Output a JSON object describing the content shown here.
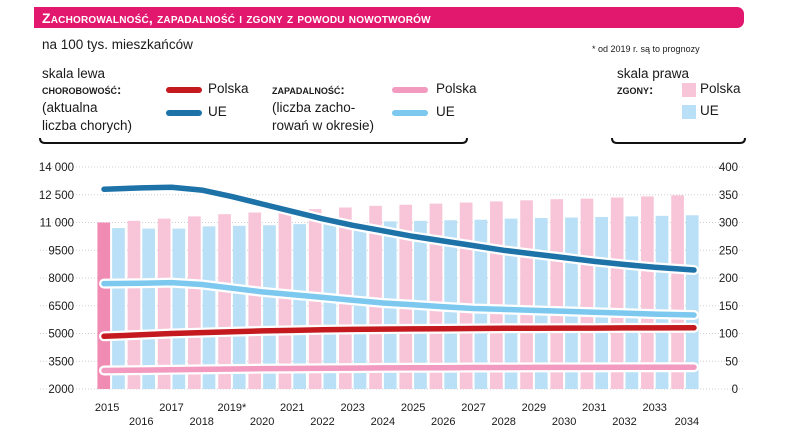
{
  "title": "Zachorowalność, zapadalność i zgony z powodu nowotworów",
  "subtitle": "na 100 tys. mieszkańców",
  "note": "* od 2019 r. są to prognozy",
  "legend": {
    "left_scale": "skala lewa",
    "right_scale": "skala prawa",
    "chorobowosc_head": "chorobowość:",
    "chorobowosc_line2": "(aktualna",
    "chorobowosc_line3": "liczba chorych)",
    "zapadalnosc_head": "zapadalność:",
    "zapadalnosc_line2": "(liczba zacho-",
    "zapadalnosc_line3": "rowań w okresie)",
    "zgony_head": "zgony:",
    "polska": "Polska",
    "ue": "UE"
  },
  "colors": {
    "title_bg": "#e2186f",
    "chorobowosc_polska": "#c41a1f",
    "chorobowosc_ue": "#1d72a8",
    "zapadalnosc_polska": "#f29ac0",
    "zapadalnosc_ue": "#7cc8ef",
    "zgony_polska": "#f8c5d8",
    "zgony_ue": "#b9e0f6",
    "zgony_polska_2015": "#f08cb4"
  },
  "chart_data": {
    "type": "bar",
    "x_labels_top": [
      "2015",
      "2017",
      "2019*",
      "2021",
      "2023",
      "2025",
      "2027",
      "2029",
      "2031",
      "2033"
    ],
    "x_labels_bottom": [
      "2016",
      "2018",
      "2020",
      "2022",
      "2024",
      "2026",
      "2028",
      "2030",
      "2032",
      "2034"
    ],
    "categories": [
      "2015",
      "2016",
      "2017",
      "2018",
      "2019",
      "2020",
      "2021",
      "2022",
      "2023",
      "2024",
      "2025",
      "2026",
      "2027",
      "2028",
      "2029",
      "2030",
      "2031",
      "2032",
      "2033",
      "2034"
    ],
    "y_left_ticks": [
      "2000",
      "3500",
      "5000",
      "6500",
      "8000",
      "9500",
      "11 000",
      "12 500",
      "14 000"
    ],
    "y_right_ticks": [
      "0",
      "50",
      "100",
      "150",
      "200",
      "250",
      "300",
      "350",
      "400"
    ],
    "ylim_left": [
      2000,
      14000
    ],
    "ylim_right": [
      0,
      400
    ],
    "bar_series": [
      {
        "name": "Polska",
        "axis": "right",
        "values": [
          300,
          303,
          307,
          311,
          315,
          318,
          321,
          324,
          327,
          330,
          332,
          334,
          336,
          338,
          340,
          342,
          343,
          345,
          347,
          349
        ]
      },
      {
        "name": "UE",
        "axis": "right",
        "values": [
          290,
          289,
          289,
          293,
          294,
          295,
          297,
          299,
          300,
          302,
          303,
          304,
          305,
          307,
          308,
          309,
          310,
          311,
          312,
          313
        ]
      }
    ],
    "line_series": [
      {
        "name": "Polska",
        "axis": "left",
        "values": [
          4850,
          4930,
          5000,
          5050,
          5090,
          5140,
          5170,
          5200,
          5220,
          5240,
          5250,
          5260,
          5270,
          5280,
          5280,
          5290,
          5290,
          5300,
          5300,
          5310
        ]
      },
      {
        "name": "UE",
        "axis": "left",
        "values": [
          12800,
          12870,
          12900,
          12750,
          12400,
          12000,
          11600,
          11200,
          10850,
          10550,
          10250,
          10000,
          9750,
          9500,
          9300,
          9100,
          8900,
          8730,
          8580,
          8430
        ]
      },
      {
        "name": "Polska",
        "axis": "left",
        "values": [
          3000,
          3020,
          3040,
          3060,
          3080,
          3100,
          3110,
          3120,
          3130,
          3140,
          3150,
          3150,
          3160,
          3160,
          3170,
          3170,
          3170,
          3180,
          3180,
          3180
        ]
      },
      {
        "name": "UE",
        "axis": "left",
        "values": [
          7700,
          7720,
          7750,
          7650,
          7450,
          7250,
          7100,
          6950,
          6800,
          6650,
          6550,
          6450,
          6350,
          6300,
          6250,
          6200,
          6150,
          6100,
          6050,
          6000
        ]
      }
    ]
  }
}
